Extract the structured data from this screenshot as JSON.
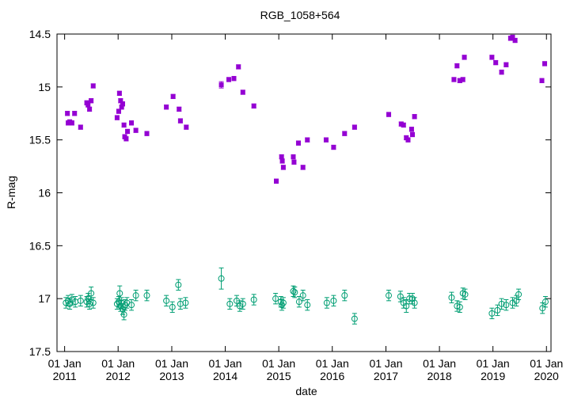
{
  "chart_data": {
    "type": "scatter",
    "title": "RGB_1058+564",
    "xlabel": "date",
    "ylabel": "R-mag",
    "y_reversed": true,
    "ylim": [
      17.5,
      14.5
    ],
    "xlim": [
      "2010-11-10",
      "2020-02-01"
    ],
    "yticks": [
      "14.5",
      "15",
      "15.5",
      "16",
      "16.5",
      "17",
      "17.5"
    ],
    "xticks": [
      {
        "date": "2011-01-01",
        "line1": "01 Jan",
        "line2": "2011"
      },
      {
        "date": "2012-01-01",
        "line1": "01 Jan",
        "line2": "2012"
      },
      {
        "date": "2013-01-01",
        "line1": "01 Jan",
        "line2": "2013"
      },
      {
        "date": "2014-01-01",
        "line1": "01 Jan",
        "line2": "2014"
      },
      {
        "date": "2015-01-01",
        "line1": "01 Jan",
        "line2": "2015"
      },
      {
        "date": "2016-01-01",
        "line1": "01 Jan",
        "line2": "2016"
      },
      {
        "date": "2017-01-01",
        "line1": "01 Jan",
        "line2": "2017"
      },
      {
        "date": "2018-01-01",
        "line1": "01 Jan",
        "line2": "2018"
      },
      {
        "date": "2019-01-01",
        "line1": "01 Jan",
        "line2": "2019"
      },
      {
        "date": "2020-01-01",
        "line1": "01 Jan",
        "line2": "2020"
      }
    ],
    "grid": false,
    "series": [
      {
        "marker": "filled-square",
        "color": "#9400d3",
        "points": [
          {
            "x": "2011-01-20",
            "y": 15.25,
            "err": 0.02
          },
          {
            "x": "2011-01-25",
            "y": 15.34,
            "err": 0.02
          },
          {
            "x": "2011-02-05",
            "y": 15.33,
            "err": 0.02
          },
          {
            "x": "2011-02-20",
            "y": 15.34,
            "err": 0.02
          },
          {
            "x": "2011-03-10",
            "y": 15.25,
            "err": 0.02
          },
          {
            "x": "2011-04-20",
            "y": 15.38,
            "err": 0.02
          },
          {
            "x": "2011-06-01",
            "y": 15.15,
            "err": 0.02
          },
          {
            "x": "2011-06-10",
            "y": 15.17,
            "err": 0.02
          },
          {
            "x": "2011-06-20",
            "y": 15.21,
            "err": 0.02
          },
          {
            "x": "2011-07-01",
            "y": 15.13,
            "err": 0.02
          },
          {
            "x": "2011-07-15",
            "y": 14.99,
            "err": 0.02
          },
          {
            "x": "2011-12-25",
            "y": 15.29,
            "err": 0.02
          },
          {
            "x": "2012-01-05",
            "y": 15.23,
            "err": 0.02
          },
          {
            "x": "2012-01-10",
            "y": 15.06,
            "err": 0.02
          },
          {
            "x": "2012-01-18",
            "y": 15.13,
            "err": 0.02
          },
          {
            "x": "2012-01-25",
            "y": 15.19,
            "err": 0.02
          },
          {
            "x": "2012-02-01",
            "y": 15.16,
            "err": 0.02
          },
          {
            "x": "2012-02-10",
            "y": 15.36,
            "err": 0.02
          },
          {
            "x": "2012-02-15",
            "y": 15.47,
            "err": 0.02
          },
          {
            "x": "2012-02-25",
            "y": 15.49,
            "err": 0.02
          },
          {
            "x": "2012-03-05",
            "y": 15.42,
            "err": 0.02
          },
          {
            "x": "2012-04-01",
            "y": 15.34,
            "err": 0.02
          },
          {
            "x": "2012-05-01",
            "y": 15.41,
            "err": 0.02
          },
          {
            "x": "2012-07-15",
            "y": 15.44,
            "err": 0.02
          },
          {
            "x": "2012-11-25",
            "y": 15.19,
            "err": 0.02
          },
          {
            "x": "2013-01-10",
            "y": 15.09,
            "err": 0.02
          },
          {
            "x": "2013-02-20",
            "y": 15.21,
            "err": 0.02
          },
          {
            "x": "2013-03-01",
            "y": 15.32,
            "err": 0.02
          },
          {
            "x": "2013-04-10",
            "y": 15.38,
            "err": 0.02
          },
          {
            "x": "2013-12-05",
            "y": 14.98,
            "err": 0.03
          },
          {
            "x": "2014-01-25",
            "y": 14.93,
            "err": 0.02
          },
          {
            "x": "2014-03-01",
            "y": 14.92,
            "err": 0.02
          },
          {
            "x": "2014-04-01",
            "y": 14.81,
            "err": 0.02
          },
          {
            "x": "2014-05-01",
            "y": 15.05,
            "err": 0.02
          },
          {
            "x": "2014-07-15",
            "y": 15.18,
            "err": 0.02
          },
          {
            "x": "2014-12-15",
            "y": 15.89,
            "err": 0.02
          },
          {
            "x": "2015-01-20",
            "y": 15.66,
            "err": 0.02
          },
          {
            "x": "2015-01-25",
            "y": 15.7,
            "err": 0.02
          },
          {
            "x": "2015-02-01",
            "y": 15.76,
            "err": 0.02
          },
          {
            "x": "2015-04-10",
            "y": 15.66,
            "err": 0.02
          },
          {
            "x": "2015-04-15",
            "y": 15.71,
            "err": 0.02
          },
          {
            "x": "2015-05-15",
            "y": 15.53,
            "err": 0.02
          },
          {
            "x": "2015-06-15",
            "y": 15.76,
            "err": 0.02
          },
          {
            "x": "2015-07-15",
            "y": 15.5,
            "err": 0.02
          },
          {
            "x": "2015-11-20",
            "y": 15.5,
            "err": 0.02
          },
          {
            "x": "2016-01-10",
            "y": 15.57,
            "err": 0.02
          },
          {
            "x": "2016-03-25",
            "y": 15.44,
            "err": 0.02
          },
          {
            "x": "2016-06-01",
            "y": 15.38,
            "err": 0.02
          },
          {
            "x": "2017-01-20",
            "y": 15.26,
            "err": 0.02
          },
          {
            "x": "2017-04-15",
            "y": 15.35,
            "err": 0.02
          },
          {
            "x": "2017-05-01",
            "y": 15.36,
            "err": 0.02
          },
          {
            "x": "2017-05-20",
            "y": 15.48,
            "err": 0.02
          },
          {
            "x": "2017-06-01",
            "y": 15.5,
            "err": 0.02
          },
          {
            "x": "2017-06-25",
            "y": 15.4,
            "err": 0.02
          },
          {
            "x": "2017-07-01",
            "y": 15.45,
            "err": 0.02
          },
          {
            "x": "2017-07-15",
            "y": 15.28,
            "err": 0.02
          },
          {
            "x": "2018-04-10",
            "y": 14.93,
            "err": 0.02
          },
          {
            "x": "2018-05-01",
            "y": 14.8,
            "err": 0.02
          },
          {
            "x": "2018-05-20",
            "y": 14.94,
            "err": 0.02
          },
          {
            "x": "2018-06-10",
            "y": 14.93,
            "err": 0.02
          },
          {
            "x": "2018-06-20",
            "y": 14.72,
            "err": 0.02
          },
          {
            "x": "2018-12-25",
            "y": 14.72,
            "err": 0.02
          },
          {
            "x": "2019-01-20",
            "y": 14.77,
            "err": 0.02
          },
          {
            "x": "2019-03-01",
            "y": 14.86,
            "err": 0.02
          },
          {
            "x": "2019-04-01",
            "y": 14.79,
            "err": 0.02
          },
          {
            "x": "2019-05-01",
            "y": 14.54,
            "err": 0.02
          },
          {
            "x": "2019-05-15",
            "y": 14.53,
            "err": 0.02
          },
          {
            "x": "2019-06-01",
            "y": 14.56,
            "err": 0.02
          },
          {
            "x": "2019-12-01",
            "y": 14.94,
            "err": 0.02
          },
          {
            "x": "2019-12-20",
            "y": 14.78,
            "err": 0.02
          }
        ]
      },
      {
        "marker": "open-circle",
        "color": "#009e73",
        "points": [
          {
            "x": "2011-01-10",
            "y": 17.04,
            "err": 0.05
          },
          {
            "x": "2011-01-25",
            "y": 17.02,
            "err": 0.05
          },
          {
            "x": "2011-02-05",
            "y": 17.05,
            "err": 0.05
          },
          {
            "x": "2011-02-20",
            "y": 17.01,
            "err": 0.05
          },
          {
            "x": "2011-03-15",
            "y": 17.03,
            "err": 0.05
          },
          {
            "x": "2011-04-20",
            "y": 17.02,
            "err": 0.05
          },
          {
            "x": "2011-06-01",
            "y": 17.03,
            "err": 0.05
          },
          {
            "x": "2011-06-10",
            "y": 17.0,
            "err": 0.05
          },
          {
            "x": "2011-06-20",
            "y": 17.05,
            "err": 0.05
          },
          {
            "x": "2011-07-01",
            "y": 16.95,
            "err": 0.06
          },
          {
            "x": "2011-07-15",
            "y": 17.04,
            "err": 0.05
          },
          {
            "x": "2011-12-25",
            "y": 17.05,
            "err": 0.05
          },
          {
            "x": "2012-01-05",
            "y": 17.03,
            "err": 0.05
          },
          {
            "x": "2012-01-12",
            "y": 16.95,
            "err": 0.07
          },
          {
            "x": "2012-01-18",
            "y": 17.07,
            "err": 0.05
          },
          {
            "x": "2012-01-25",
            "y": 17.04,
            "err": 0.05
          },
          {
            "x": "2012-02-01",
            "y": 17.1,
            "err": 0.05
          },
          {
            "x": "2012-02-10",
            "y": 17.15,
            "err": 0.05
          },
          {
            "x": "2012-02-18",
            "y": 17.06,
            "err": 0.05
          },
          {
            "x": "2012-03-01",
            "y": 17.04,
            "err": 0.05
          },
          {
            "x": "2012-04-01",
            "y": 17.06,
            "err": 0.05
          },
          {
            "x": "2012-05-01",
            "y": 16.97,
            "err": 0.05
          },
          {
            "x": "2012-07-15",
            "y": 16.97,
            "err": 0.05
          },
          {
            "x": "2012-11-25",
            "y": 17.02,
            "err": 0.05
          },
          {
            "x": "2013-01-05",
            "y": 17.08,
            "err": 0.05
          },
          {
            "x": "2013-02-15",
            "y": 16.87,
            "err": 0.05
          },
          {
            "x": "2013-03-01",
            "y": 17.05,
            "err": 0.05
          },
          {
            "x": "2013-04-05",
            "y": 17.04,
            "err": 0.05
          },
          {
            "x": "2013-12-05",
            "y": 16.81,
            "err": 0.1
          },
          {
            "x": "2014-02-01",
            "y": 17.05,
            "err": 0.05
          },
          {
            "x": "2014-03-20",
            "y": 17.02,
            "err": 0.05
          },
          {
            "x": "2014-04-10",
            "y": 17.07,
            "err": 0.05
          },
          {
            "x": "2014-05-01",
            "y": 17.05,
            "err": 0.05
          },
          {
            "x": "2014-07-15",
            "y": 17.01,
            "err": 0.05
          },
          {
            "x": "2014-12-10",
            "y": 17.0,
            "err": 0.05
          },
          {
            "x": "2015-01-15",
            "y": 17.03,
            "err": 0.05
          },
          {
            "x": "2015-01-22",
            "y": 17.06,
            "err": 0.05
          },
          {
            "x": "2015-02-01",
            "y": 17.04,
            "err": 0.05
          },
          {
            "x": "2015-04-10",
            "y": 16.93,
            "err": 0.05
          },
          {
            "x": "2015-04-20",
            "y": 16.94,
            "err": 0.05
          },
          {
            "x": "2015-05-20",
            "y": 17.03,
            "err": 0.05
          },
          {
            "x": "2015-06-15",
            "y": 16.97,
            "err": 0.05
          },
          {
            "x": "2015-07-15",
            "y": 17.06,
            "err": 0.05
          },
          {
            "x": "2015-11-25",
            "y": 17.04,
            "err": 0.05
          },
          {
            "x": "2016-01-10",
            "y": 17.02,
            "err": 0.05
          },
          {
            "x": "2016-03-25",
            "y": 16.97,
            "err": 0.05
          },
          {
            "x": "2016-06-01",
            "y": 17.19,
            "err": 0.05
          },
          {
            "x": "2017-01-20",
            "y": 16.97,
            "err": 0.05
          },
          {
            "x": "2017-04-10",
            "y": 16.98,
            "err": 0.05
          },
          {
            "x": "2017-05-01",
            "y": 17.04,
            "err": 0.05
          },
          {
            "x": "2017-05-20",
            "y": 17.07,
            "err": 0.06
          },
          {
            "x": "2017-06-10",
            "y": 17.0,
            "err": 0.05
          },
          {
            "x": "2017-07-01",
            "y": 17.0,
            "err": 0.05
          },
          {
            "x": "2017-07-15",
            "y": 17.04,
            "err": 0.05
          },
          {
            "x": "2018-03-25",
            "y": 16.99,
            "err": 0.05
          },
          {
            "x": "2018-05-01",
            "y": 17.07,
            "err": 0.05
          },
          {
            "x": "2018-05-20",
            "y": 17.08,
            "err": 0.05
          },
          {
            "x": "2018-06-10",
            "y": 16.95,
            "err": 0.05
          },
          {
            "x": "2018-06-25",
            "y": 16.96,
            "err": 0.05
          },
          {
            "x": "2018-12-25",
            "y": 17.14,
            "err": 0.05
          },
          {
            "x": "2019-02-01",
            "y": 17.11,
            "err": 0.05
          },
          {
            "x": "2019-03-01",
            "y": 17.05,
            "err": 0.05
          },
          {
            "x": "2019-04-01",
            "y": 17.06,
            "err": 0.05
          },
          {
            "x": "2019-05-15",
            "y": 17.04,
            "err": 0.05
          },
          {
            "x": "2019-06-10",
            "y": 17.02,
            "err": 0.05
          },
          {
            "x": "2019-06-25",
            "y": 16.96,
            "err": 0.05
          },
          {
            "x": "2019-12-05",
            "y": 17.09,
            "err": 0.05
          },
          {
            "x": "2019-12-25",
            "y": 17.03,
            "err": 0.05
          }
        ]
      }
    ]
  }
}
